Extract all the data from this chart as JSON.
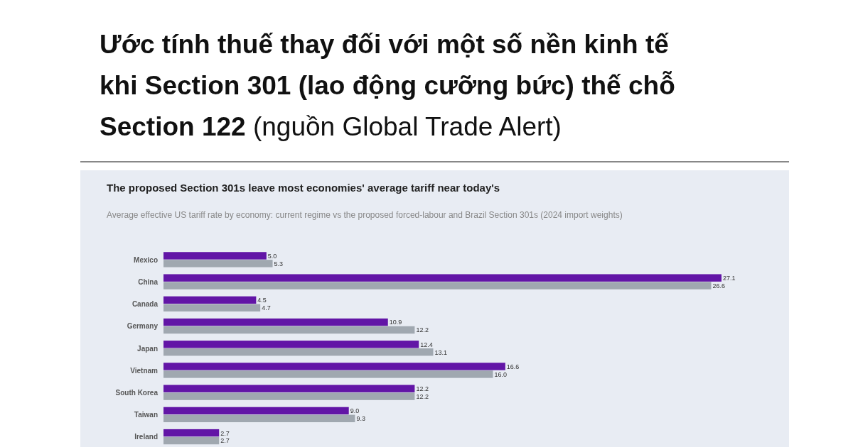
{
  "chart_data": {
    "type": "bar",
    "orientation": "horizontal",
    "title": "Ước tính thuế thay đối với một số nền kinh tế khi Section 301 (lao động cưỡng bức) thế chỗ Section 122 (nguồn Global Trade Alert)",
    "subtitle": "The proposed Section 301s leave most economies' average tariff near today's",
    "annotations": [
      "Average effective US tariff rate by economy: current regime vs the proposed forced-labour and Brazil Section 301s (2024 import weights)"
    ],
    "categories": [
      "Mexico",
      "China",
      "Canada",
      "Germany",
      "Japan",
      "Vietnam",
      "South Korea",
      "Taiwan",
      "Ireland"
    ],
    "series": [
      {
        "color": "#6215a6",
        "values": [
          5.0,
          27.1,
          4.5,
          10.9,
          12.4,
          16.6,
          12.2,
          9.0,
          2.7
        ],
        "value_labels": [
          "5.0",
          "27.1",
          "4.5",
          "10.9",
          "12.4",
          "16.6",
          "12.2",
          "9.0",
          "2.7"
        ]
      },
      {
        "color": "#a0a8b0",
        "values": [
          5.3,
          26.6,
          4.7,
          12.2,
          13.1,
          16.0,
          12.2,
          9.3,
          2.7
        ],
        "value_labels": [
          "5.3",
          "26.6",
          "4.7",
          "12.2",
          "13.1",
          "16.0",
          "12.2",
          "9.3",
          "2.7"
        ]
      }
    ]
  }
}
